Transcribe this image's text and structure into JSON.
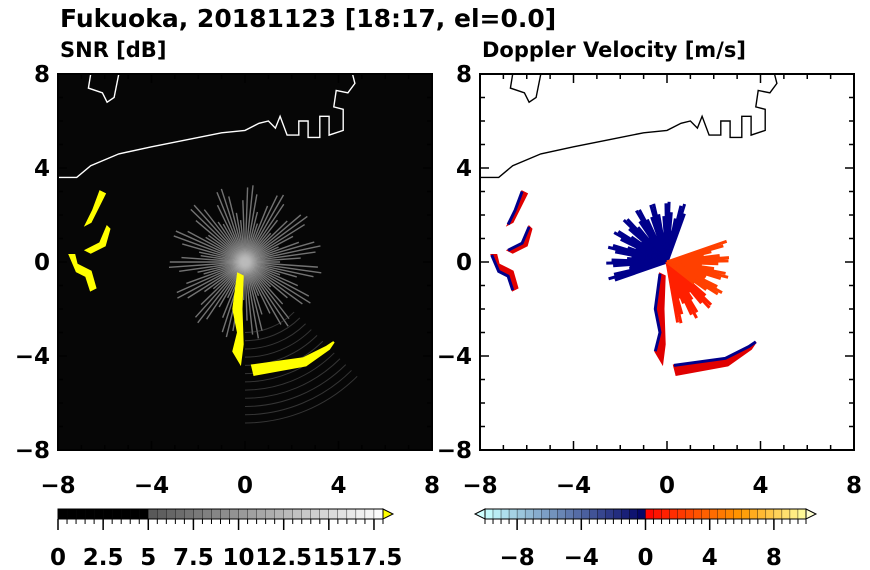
{
  "title": "Fukuoka, 20181123 [18:17, el=0.0]",
  "chart_data": [
    {
      "type": "heatmap",
      "title": "SNR [dB]",
      "xlim": [
        -8,
        8
      ],
      "ylim": [
        -8,
        8
      ],
      "xticks": [
        "−8",
        "−4",
        "0",
        "4",
        "8"
      ],
      "yticks": [
        "8",
        "4",
        "0",
        "−4",
        "−8"
      ],
      "colorbar": {
        "min": 0,
        "max": 18,
        "step": 0.5,
        "labels": [
          "0",
          "2.5",
          "5",
          "7.5",
          "10",
          "12.5",
          "15",
          "17.5"
        ],
        "extend": "max",
        "over_color": "#ffff00"
      }
    },
    {
      "type": "heatmap",
      "title": "Doppler Velocity [m/s]",
      "xlim": [
        -8,
        8
      ],
      "ylim": [
        -8,
        8
      ],
      "xticks": [
        "−8",
        "−4",
        "0",
        "4",
        "8"
      ],
      "yticks": [
        "8",
        "4",
        "0",
        "−4",
        "−8"
      ],
      "colorbar": {
        "min": -10,
        "max": 10,
        "step": 0.5,
        "labels": [
          "−8",
          "−4",
          "0",
          "4",
          "8"
        ],
        "extend": "both"
      }
    }
  ]
}
